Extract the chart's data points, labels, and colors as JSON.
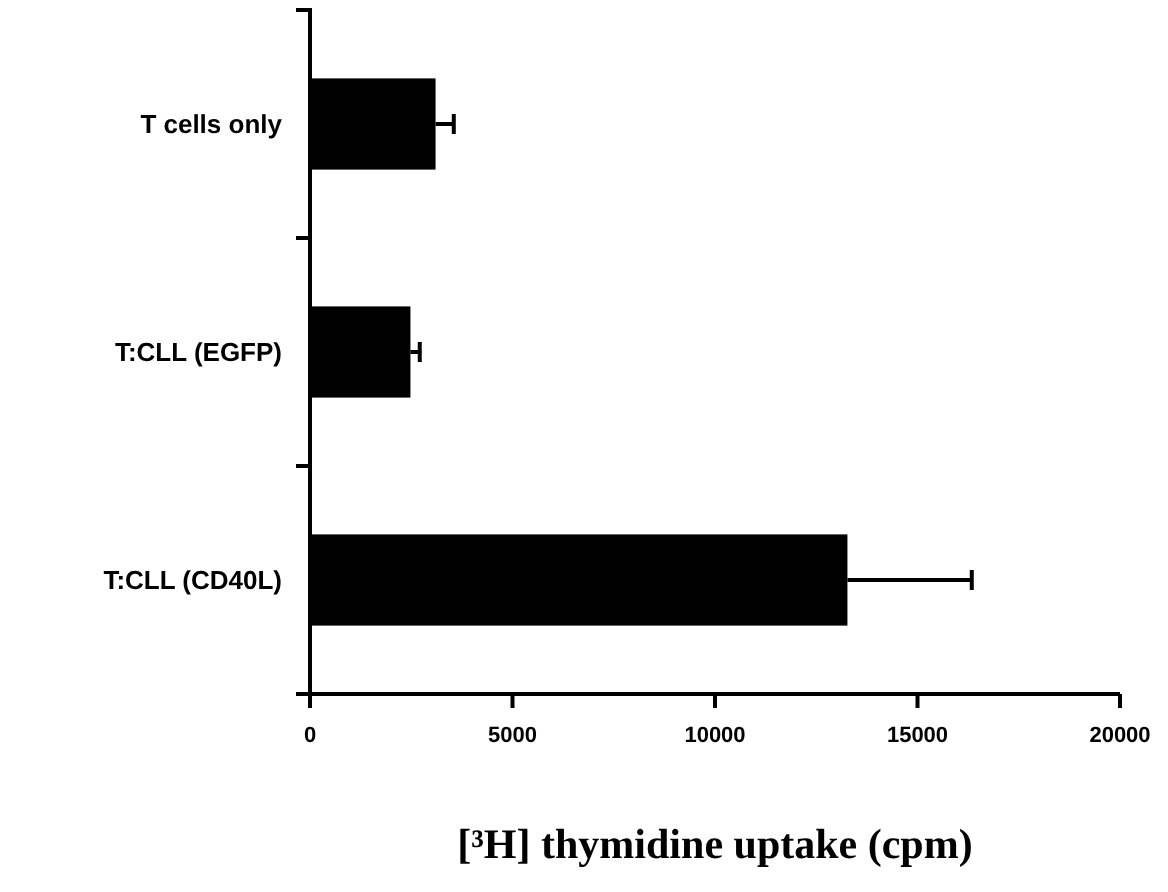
{
  "chart_data": {
    "type": "bar",
    "orientation": "horizontal",
    "categories": [
      "T cells only",
      "T:CLL (EGFP)",
      "T:CLL (CD40L)"
    ],
    "values": [
      3100,
      2480,
      13270
    ],
    "errors": [
      [
        3100,
        3550
      ],
      [
        2480,
        2710
      ],
      [
        13270,
        16340
      ]
    ],
    "color": "#000000",
    "xlim": [
      0,
      20000
    ],
    "xticks": [
      0,
      5000,
      10000,
      15000,
      20000
    ],
    "xlabel": "[³H] thymidine uptake (cpm)",
    "grid": false
  }
}
